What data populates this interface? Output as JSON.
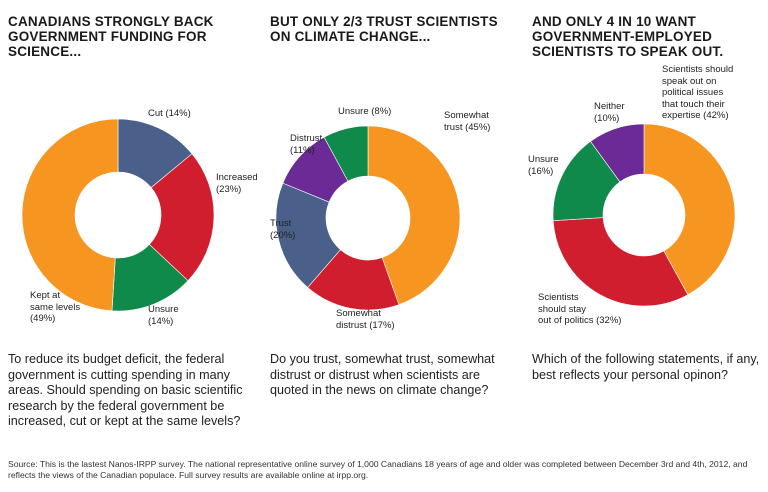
{
  "chart_data": [
    {
      "type": "pie",
      "title": "CANADIANS STRONGLY BACK GOVERNMENT FUNDING FOR SCIENCE...",
      "question": "To reduce its budget deficit, the federal government is cutting spending in many areas. Should spending on basic scientific research by the federal government be increased, cut or kept at the same levels?",
      "slices": [
        {
          "label": "Cut (14%)",
          "value": 14,
          "color": "#4a5f8a"
        },
        {
          "label": "Increased\n(23%)",
          "value": 23,
          "color": "#d01e2e"
        },
        {
          "label": "Unsure\n(14%)",
          "value": 14,
          "color": "#0f8a4b"
        },
        {
          "label": "Kept at\nsame levels\n(49%)",
          "value": 49,
          "color": "#f6951f"
        }
      ]
    },
    {
      "type": "pie",
      "title": "BUT ONLY 2/3 TRUST SCIENTISTS ON CLIMATE CHANGE...",
      "question": "Do you trust, somewhat trust, somewhat distrust or distrust when scientists are quoted in the news on climate change?",
      "slices": [
        {
          "label": "Somewhat\ntrust (45%)",
          "value": 45,
          "color": "#f6951f"
        },
        {
          "label": "Somewhat\ndistrust (17%)",
          "value": 17,
          "color": "#d01e2e"
        },
        {
          "label": "Trust\n(20%)",
          "value": 20,
          "color": "#4a5f8a"
        },
        {
          "label": "Distrust\n(11%)",
          "value": 11,
          "color": "#6b2a96"
        },
        {
          "label": "Unsure (8%)",
          "value": 8,
          "color": "#0f8a4b"
        }
      ]
    },
    {
      "type": "pie",
      "title": "AND ONLY 4 IN 10 WANT GOVERNMENT-EMPLOYED SCIENTISTS TO SPEAK OUT.",
      "question": "Which of the following statements, if any, best reflects your personal opinon?",
      "slices": [
        {
          "label": "Scientists should\nspeak out on\npolitical issues\nthat touch their\nexpertise (42%)",
          "value": 42,
          "color": "#f6951f"
        },
        {
          "label": "Scientists\nshould stay\nout of politics (32%)",
          "value": 32,
          "color": "#d01e2e"
        },
        {
          "label": "Unsure\n(16%)",
          "value": 16,
          "color": "#0f8a4b"
        },
        {
          "label": "Neither\n(10%)",
          "value": 10,
          "color": "#6b2a96"
        }
      ]
    }
  ],
  "source": "Source: This is the lastest Nanos-IRPP survey. The national representative online survey of 1,000 Canadians 18 years of age and older was completed between December 3rd and 4th, 2012, and reflects the views of the Canadian populace. Full survey results are available online at irpp.org."
}
